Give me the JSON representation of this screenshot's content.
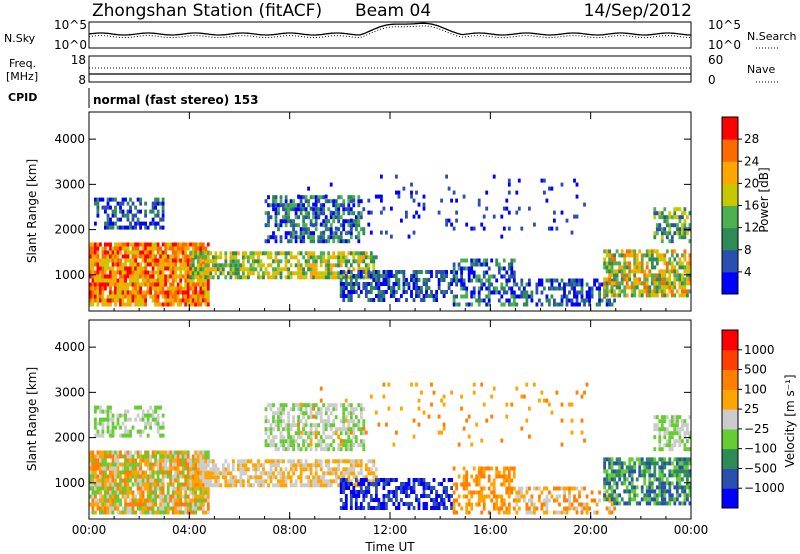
{
  "header": {
    "station": "Zhongshan Station (fitACF)",
    "beam": "Beam 04",
    "date": "14/Sep/2012"
  },
  "strip_labels": {
    "nsky": "N.Sky",
    "nsearch": "N.Search",
    "freq_line1": "Freq.",
    "freq_line2": "[MHz]",
    "nave": "Nave",
    "cpid": "CPID",
    "cpid_value": "normal (fast stereo) 153"
  },
  "strip_ticks": {
    "noise_top": "10^5",
    "noise_bottom": "10^0",
    "freq_top": "18",
    "freq_bottom": "8",
    "nave_top": "60",
    "nave_bottom": "0"
  },
  "chart_data": [
    {
      "type": "heatmap",
      "name": "power-panel",
      "ylabel": "Slant Range [km]",
      "xlabel": "",
      "y_ticks": [
        "1000",
        "2000",
        "3000",
        "4000"
      ],
      "ylim": [
        200,
        4600
      ],
      "x_ticks": [
        "00:00",
        "04:00",
        "08:00",
        "12:00",
        "16:00",
        "20:00",
        "00:00"
      ],
      "colorbar": {
        "label": "Power [dB]",
        "ticks": [
          "4",
          "8",
          "12",
          "16",
          "20",
          "24",
          "28"
        ],
        "colors": [
          "#0000ff",
          "#2a4fb0",
          "#2e8b57",
          "#4caf50",
          "#c8c800",
          "#ffa500",
          "#ff6a00",
          "#ff0000"
        ]
      }
    },
    {
      "type": "heatmap",
      "name": "velocity-panel",
      "ylabel": "Slant Range [km]",
      "xlabel": "Time UT",
      "y_ticks": [
        "1000",
        "2000",
        "3000",
        "4000"
      ],
      "ylim": [
        200,
        4600
      ],
      "x_ticks": [
        "00:00",
        "04:00",
        "08:00",
        "12:00",
        "16:00",
        "20:00",
        "00:00"
      ],
      "colorbar": {
        "label": "Velocity [m s⁻¹]",
        "ticks": [
          "1000",
          "500",
          "100",
          "25",
          "−25",
          "−100",
          "−500",
          "−1000"
        ],
        "colors": [
          "#0000ff",
          "#2a4fb0",
          "#2e8b57",
          "#66cc33",
          "#cccccc",
          "#ffa500",
          "#ff7f00",
          "#ff4000",
          "#ff0000"
        ]
      }
    }
  ]
}
